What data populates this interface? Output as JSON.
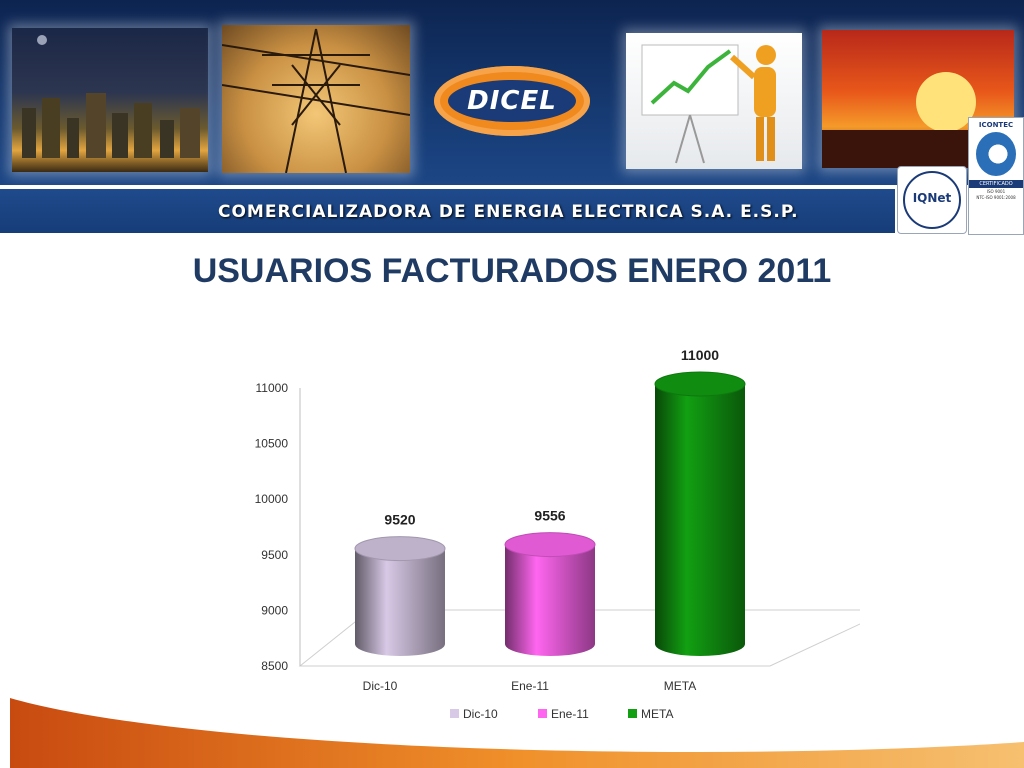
{
  "header": {
    "company_band": "COMERCIALIZADORA DE ENERGIA ELECTRICA S.A. E.S.P.",
    "logo_text": "DICEL",
    "cert_iqnet": "IQNet",
    "cert_icontec_brand": "ICONTEC",
    "cert_icontec_label": "CERTIFICADO",
    "cert_icontec_std": "ISO 9001",
    "cert_icontec_ntc": "NTC-ISO 9001:2008"
  },
  "slide": {
    "title": "USUARIOS FACTURADOS ENERO 2011"
  },
  "chart_data": {
    "type": "bar",
    "style": "3d-cylinder",
    "categories": [
      "Dic-10",
      "Ene-11",
      "META"
    ],
    "values": [
      9520,
      9556,
      11000
    ],
    "data_labels": [
      "9520",
      "9556",
      "11000"
    ],
    "series_names": [
      "Dic-10",
      "Ene-11",
      "META"
    ],
    "colors": [
      "#d8c9e6",
      "#ff66f0",
      "#12a012"
    ],
    "ylim": [
      8500,
      11000
    ],
    "yticks": [
      8500,
      9000,
      9500,
      10000,
      10500,
      11000
    ],
    "legend_position": "bottom",
    "grid": false
  }
}
